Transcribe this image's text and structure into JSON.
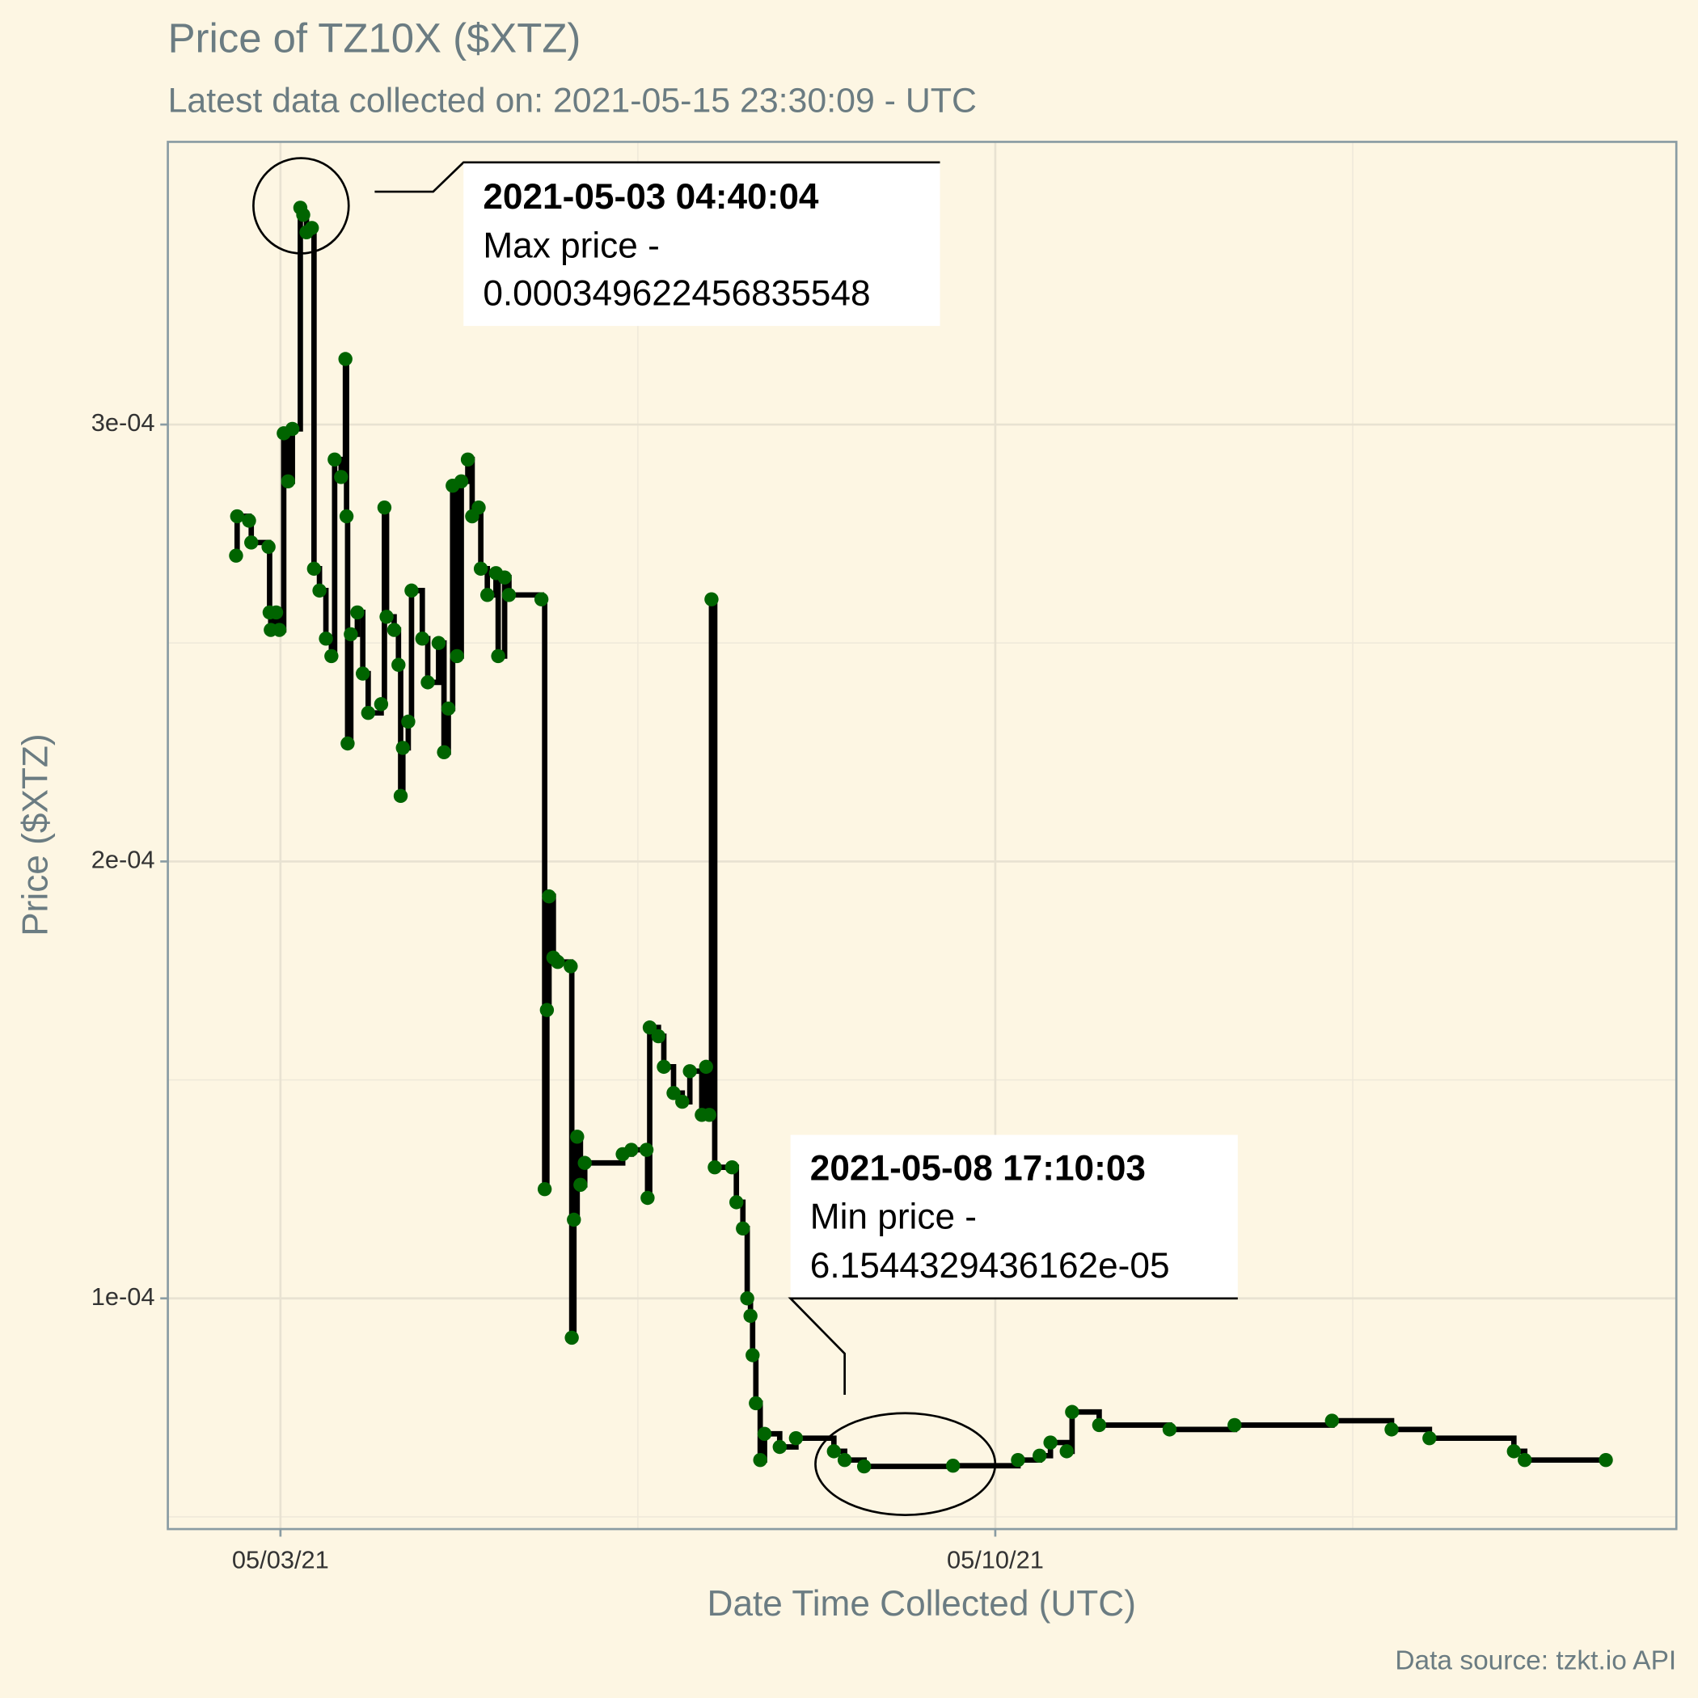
{
  "chart_data": {
    "type": "step",
    "title": "Price of TZ10X ($XTZ)",
    "subtitle": "Latest data collected on: 2021-05-15 23:30:09  - UTC",
    "x_label": "Date Time Collected (UTC)",
    "y_label": "Price ($XTZ)",
    "caption": "Data source: tzkt.io API",
    "xlim": [
      "2021-05-01 21:32",
      "2021-05-16 16:04"
    ],
    "xticks": [
      {
        "value": "2021-05-03 00:00",
        "label": "05/03/21"
      },
      {
        "value": "2021-05-10 00:00",
        "label": "05/10/21"
      }
    ],
    "x_minor_grid": [
      "2021-05-06 12:00",
      "2021-05-13 12:00"
    ],
    "ylim": [
      4.72e-05,
      0.0003647
    ],
    "yticks": [
      {
        "value": 0.0001,
        "label": "1e-04"
      },
      {
        "value": 0.0002,
        "label": "2e-04"
      },
      {
        "value": 0.0003,
        "label": "3e-04"
      }
    ],
    "y_minor_grid": [
      5e-05,
      0.00015,
      0.00025
    ],
    "grid": true,
    "line_color": "#000000",
    "point_color": "#006400",
    "x": [
      "2021-05-02 13:34",
      "2021-05-02 13:49",
      "2021-05-02 16:37",
      "2021-05-02 17:08",
      "2021-05-02 21:12",
      "2021-05-02 21:27",
      "2021-05-02 21:43",
      "2021-05-02 22:59",
      "2021-05-02 23:45",
      "2021-05-03 00:46",
      "2021-05-03 01:47",
      "2021-05-03 02:48",
      "2021-05-03 04:40",
      "2021-05-03 05:21",
      "2021-05-03 06:07",
      "2021-05-03 07:23",
      "2021-05-03 07:53",
      "2021-05-03 09:10",
      "2021-05-03 10:41",
      "2021-05-03 11:58",
      "2021-05-03 12:44",
      "2021-05-03 14:15",
      "2021-05-03 15:16",
      "2021-05-03 15:32",
      "2021-05-03 15:47",
      "2021-05-03 16:32",
      "2021-05-03 18:04",
      "2021-05-03 19:21",
      "2021-05-03 20:37",
      "2021-05-03 23:40",
      "2021-05-04 00:26",
      "2021-05-04 00:56",
      "2021-05-04 02:43",
      "2021-05-04 03:44",
      "2021-05-04 04:15",
      "2021-05-04 04:46",
      "2021-05-04 06:02",
      "2021-05-04 06:48",
      "2021-05-04 09:20",
      "2021-05-04 10:37",
      "2021-05-04 13:10",
      "2021-05-04 14:26",
      "2021-05-04 15:27",
      "2021-05-04 16:28",
      "2021-05-04 17:29",
      "2021-05-04 18:30",
      "2021-05-04 20:02",
      "2021-05-04 21:03",
      "2021-05-04 22:35",
      "2021-05-04 23:05",
      "2021-05-05 00:37",
      "2021-05-05 02:39",
      "2021-05-05 03:10",
      "2021-05-05 04:41",
      "2021-05-05 05:42",
      "2021-05-05 13:20",
      "2021-05-05 14:06",
      "2021-05-05 14:37",
      "2021-05-05 15:07",
      "2021-05-05 16:08",
      "2021-05-05 17:10",
      "2021-05-05 20:13",
      "2021-05-05 20:28",
      "2021-05-05 20:58",
      "2021-05-05 21:44",
      "2021-05-05 22:30",
      "2021-05-05 23:31",
      "2021-05-06 08:26",
      "2021-05-06 10:28",
      "2021-05-06 14:02",
      "2021-05-06 14:17",
      "2021-05-06 14:47",
      "2021-05-06 16:50",
      "2021-05-06 18:06",
      "2021-05-06 20:23",
      "2021-05-06 22:26",
      "2021-05-07 00:13",
      "2021-05-07 03:01",
      "2021-05-07 04:02",
      "2021-05-07 04:47",
      "2021-05-07 05:18",
      "2021-05-07 06:04",
      "2021-05-07 10:08",
      "2021-05-07 11:09",
      "2021-05-07 12:41",
      "2021-05-07 13:42",
      "2021-05-07 14:28",
      "2021-05-07 14:58",
      "2021-05-07 15:44",
      "2021-05-07 16:45",
      "2021-05-07 17:46",
      "2021-05-07 21:20",
      "2021-05-08 01:09",
      "2021-05-08 10:04",
      "2021-05-08 12:36",
      "2021-05-08 17:10",
      "2021-05-09 14:04",
      "2021-05-10 05:20",
      "2021-05-10 10:25",
      "2021-05-10 12:58",
      "2021-05-10 16:47",
      "2021-05-10 18:03",
      "2021-05-11 00:25",
      "2021-05-11 16:58",
      "2021-05-12 08:14",
      "2021-05-13 07:08",
      "2021-05-13 21:08",
      "2021-05-14 06:02",
      "2021-05-15 01:53",
      "2021-05-15 04:26",
      "2021-05-15 23:30"
    ],
    "values": [
      0.00027,
      0.000279,
      0.000278,
      0.000273,
      0.000272,
      0.000257,
      0.000253,
      0.000257,
      0.000253,
      0.000298,
      0.000287,
      0.000299,
      0.000349622456835548,
      0.000348,
      0.000344,
      0.000345,
      0.000267,
      0.000262,
      0.000251,
      0.000247,
      0.000292,
      0.000288,
      0.000315,
      0.000279,
      0.000227,
      0.000252,
      0.000257,
      0.000243,
      0.000234,
      0.000236,
      0.000281,
      0.000256,
      0.000253,
      0.000245,
      0.000215,
      0.000226,
      0.000232,
      0.000262,
      0.000251,
      0.000241,
      0.00025,
      0.000225,
      0.000235,
      0.000286,
      0.000247,
      0.000287,
      0.000292,
      0.000279,
      0.000281,
      0.000267,
      0.000261,
      0.000266,
      0.000247,
      0.000265,
      0.000261,
      0.00026,
      0.000125,
      0.000166,
      0.000192,
      0.000178,
      0.000177,
      0.000176,
      9.1e-05,
      0.000118,
      0.000137,
      0.000126,
      0.000131,
      0.000133,
      0.000134,
      0.000134,
      0.000123,
      0.000162,
      0.00016,
      0.000153,
      0.000147,
      0.000145,
      0.000152,
      0.000142,
      0.000153,
      0.000142,
      0.00026,
      0.00013,
      0.00013,
      0.000122,
      0.000116,
      0.0001,
      9.6e-05,
      8.7e-05,
      7.6e-05,
      6.3e-05,
      6.9e-05,
      6.6e-05,
      6.8e-05,
      6.5e-05,
      6.3e-05,
      6.1544329436162e-05,
      6.17e-05,
      6.3e-05,
      6.4e-05,
      6.7e-05,
      6.5e-05,
      7.4e-05,
      7.1e-05,
      7e-05,
      7.1e-05,
      7.2e-05,
      7e-05,
      6.8e-05,
      6.5e-05,
      6.3e-05,
      6.3e-05
    ],
    "annotations": [
      {
        "time": "2021-05-03 04:40:04",
        "label": "Max price -",
        "value": "0.000349622456835548"
      },
      {
        "time": "2021-05-08 17:10:03",
        "label": "Min price -",
        "value": "6.1544329436162e-05"
      }
    ]
  }
}
